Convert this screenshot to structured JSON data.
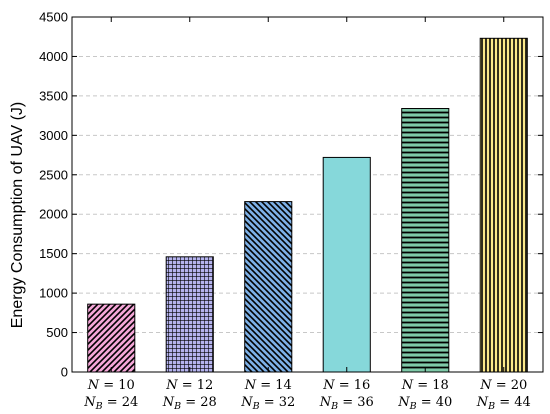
{
  "chart_data": {
    "type": "bar",
    "categories": [
      {
        "line1": "N = 10",
        "line2": "N_B = 24",
        "n": "10",
        "nb": "24"
      },
      {
        "line1": "N = 12",
        "line2": "N_B = 28",
        "n": "12",
        "nb": "28"
      },
      {
        "line1": "N = 14",
        "line2": "N_B = 32",
        "n": "14",
        "nb": "32"
      },
      {
        "line1": "N = 16",
        "line2": "N_B = 36",
        "n": "16",
        "nb": "36"
      },
      {
        "line1": "N = 18",
        "line2": "N_B = 40",
        "n": "18",
        "nb": "40"
      },
      {
        "line1": "N = 20",
        "line2": "N_B = 44",
        "n": "20",
        "nb": "44"
      }
    ],
    "values": [
      860,
      1460,
      2160,
      2720,
      3340,
      4230
    ],
    "bar_colors": [
      "#f4a6d7",
      "#b5b3ee",
      "#7db0e6",
      "#86d8da",
      "#7ec9a8",
      "#fbe98a"
    ],
    "bar_patterns": [
      "diagonal-forward",
      "grid",
      "diagonal-back",
      "none",
      "horizontal",
      "vertical"
    ],
    "xlabel": "",
    "ylabel": "Energy Consumption of UAV (J)",
    "ylim": [
      0,
      4500
    ],
    "yticks": [
      0,
      500,
      1000,
      1500,
      2000,
      2500,
      3000,
      3500,
      4000,
      4500
    ],
    "grid": "horizontal dashed"
  }
}
